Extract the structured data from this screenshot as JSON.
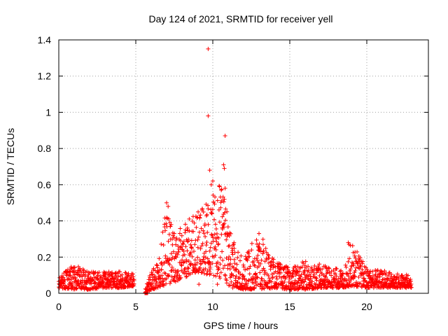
{
  "chart_data": {
    "type": "scatter",
    "title": "Day 124 of 2021, SRMTID for receiver yell",
    "xlabel": "GPS time / hours",
    "ylabel": "SRMTID / TECUs",
    "xlim": [
      0,
      24
    ],
    "ylim": [
      0,
      1.4
    ],
    "xticks": [
      "0",
      "5",
      "10",
      "15",
      "20"
    ],
    "yticks": [
      "0",
      "0.2",
      "0.4",
      "0.6",
      "0.8",
      "1",
      "1.2",
      "1.4"
    ],
    "grid": true,
    "marker": "plus",
    "colors": {
      "series": "#ff0000",
      "grid": "#a0a0a0",
      "axis": "#000000"
    },
    "series": [
      {
        "name": "SRMTID",
        "envelope": {
          "x": [
            0,
            1,
            2,
            3,
            4,
            4.9,
            5.6,
            6,
            6.5,
            7,
            7.5,
            8,
            8.5,
            9,
            9.5,
            10,
            10.5,
            11,
            11.5,
            12,
            13,
            14,
            15,
            16,
            17,
            18,
            18.5,
            19,
            20,
            21,
            22,
            22.9
          ],
          "upper": [
            0.09,
            0.16,
            0.12,
            0.12,
            0.12,
            0.11,
            0.02,
            0.13,
            0.2,
            0.5,
            0.3,
            0.38,
            0.42,
            0.45,
            0.48,
            0.62,
            0.6,
            0.45,
            0.24,
            0.2,
            0.34,
            0.18,
            0.14,
            0.18,
            0.16,
            0.14,
            0.12,
            0.29,
            0.14,
            0.13,
            0.11,
            0.1
          ],
          "lower": [
            0.03,
            0.02,
            0.02,
            0.03,
            0.03,
            0.04,
            0.0,
            0.02,
            0.03,
            0.05,
            0.06,
            0.08,
            0.1,
            0.12,
            0.1,
            0.1,
            0.08,
            0.04,
            0.03,
            0.02,
            0.02,
            0.03,
            0.02,
            0.02,
            0.03,
            0.03,
            0.03,
            0.04,
            0.03,
            0.03,
            0.03,
            0.03
          ]
        },
        "gap": [
          4.9,
          5.6
        ],
        "outliers": [
          {
            "x": 9.7,
            "y": 1.35
          },
          {
            "x": 9.7,
            "y": 0.98
          },
          {
            "x": 10.8,
            "y": 0.87
          },
          {
            "x": 9.8,
            "y": 0.68
          },
          {
            "x": 10.7,
            "y": 0.71
          },
          {
            "x": 10.75,
            "y": 0.69
          },
          {
            "x": 10.0,
            "y": 0.62
          },
          {
            "x": 9.9,
            "y": 0.6
          },
          {
            "x": 10.8,
            "y": 0.58
          },
          {
            "x": 7.0,
            "y": 0.5
          },
          {
            "x": 7.1,
            "y": 0.48
          },
          {
            "x": 7.5,
            "y": 0.33
          },
          {
            "x": 13.0,
            "y": 0.33
          },
          {
            "x": 18.8,
            "y": 0.28
          },
          {
            "x": 18.85,
            "y": 0.27
          },
          {
            "x": 9.1,
            "y": 0.05
          },
          {
            "x": 10.3,
            "y": 0.05
          },
          {
            "x": 11.3,
            "y": 0.03
          }
        ]
      }
    ]
  }
}
